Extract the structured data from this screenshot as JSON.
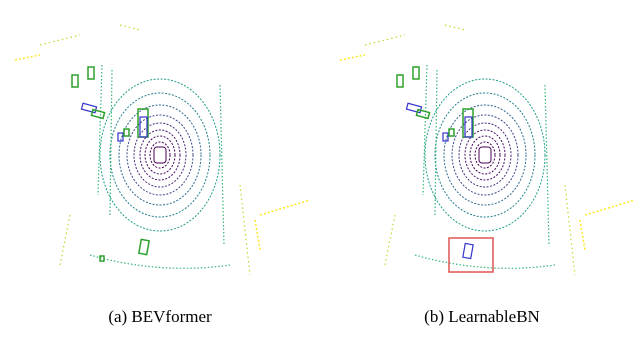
{
  "figure": {
    "panels": [
      {
        "caption": "(a) BEVformer"
      },
      {
        "caption": "(b) LearnableBN"
      }
    ]
  }
}
